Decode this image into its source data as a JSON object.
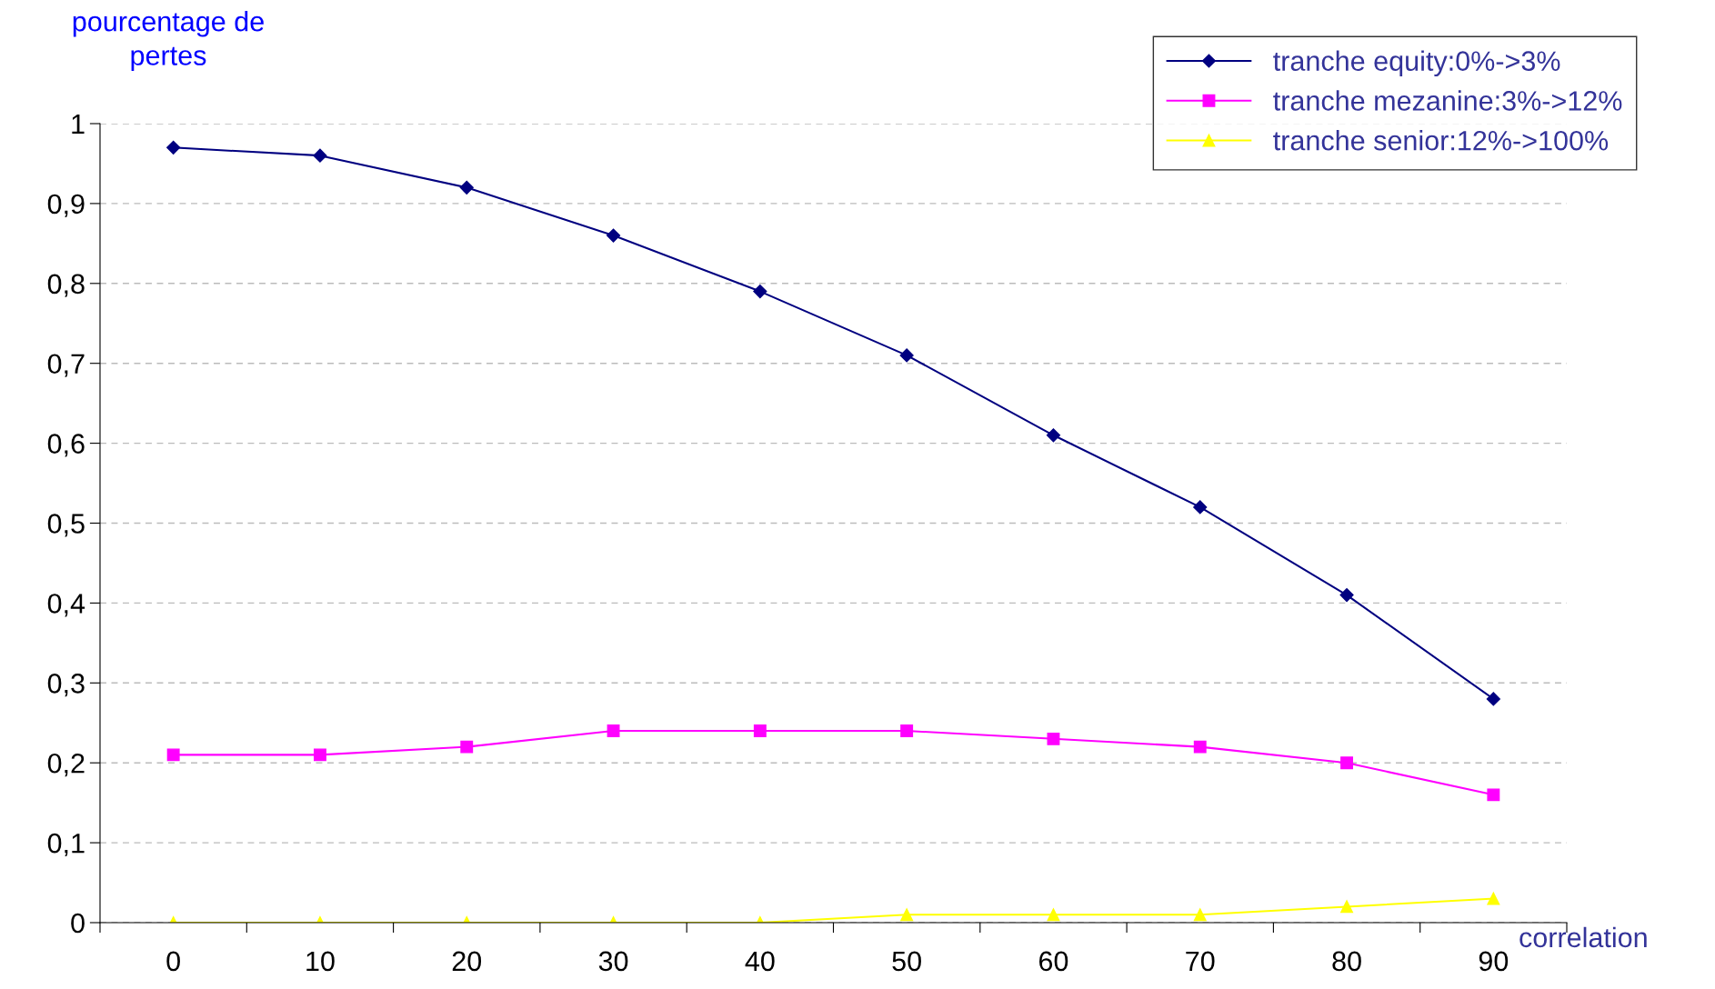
{
  "chart_data": {
    "type": "line",
    "ylabel": "pourcentage de\npertes",
    "xlabel": "correlation",
    "categories": [
      "0",
      "10",
      "20",
      "30",
      "40",
      "50",
      "60",
      "70",
      "80",
      "90"
    ],
    "series": [
      {
        "name": "tranche equity:0%->3%",
        "color": "#000080",
        "marker": "diamond",
        "values": [
          0.97,
          0.96,
          0.92,
          0.86,
          0.79,
          0.71,
          0.61,
          0.52,
          0.41,
          0.28
        ]
      },
      {
        "name": "tranche mezanine:3%->12%",
        "color": "#ff00ff",
        "marker": "square",
        "values": [
          0.21,
          0.21,
          0.22,
          0.24,
          0.24,
          0.24,
          0.23,
          0.22,
          0.2,
          0.16
        ]
      },
      {
        "name": "tranche senior:12%->100%",
        "color": "#ffff00",
        "marker": "triangle",
        "values": [
          0.0,
          0.0,
          0.0,
          0.0,
          0.0,
          0.01,
          0.01,
          0.01,
          0.02,
          0.03
        ]
      }
    ],
    "ylim": [
      0,
      1
    ],
    "yticks": [
      0,
      {
        "value": 0.1,
        "label": "0,1"
      },
      {
        "value": 0.2,
        "label": "0,2"
      },
      {
        "value": 0.3,
        "label": "0,3"
      },
      {
        "value": 0.4,
        "label": "0,4"
      },
      {
        "value": 0.5,
        "label": "0,5"
      },
      {
        "value": 0.6,
        "label": "0,6"
      },
      {
        "value": 0.7,
        "label": "0,7"
      },
      {
        "value": 0.8,
        "label": "0,8"
      },
      {
        "value": 0.9,
        "label": "0,9"
      },
      1
    ],
    "grid": "y",
    "legend": "top right",
    "line_style": "solid"
  }
}
